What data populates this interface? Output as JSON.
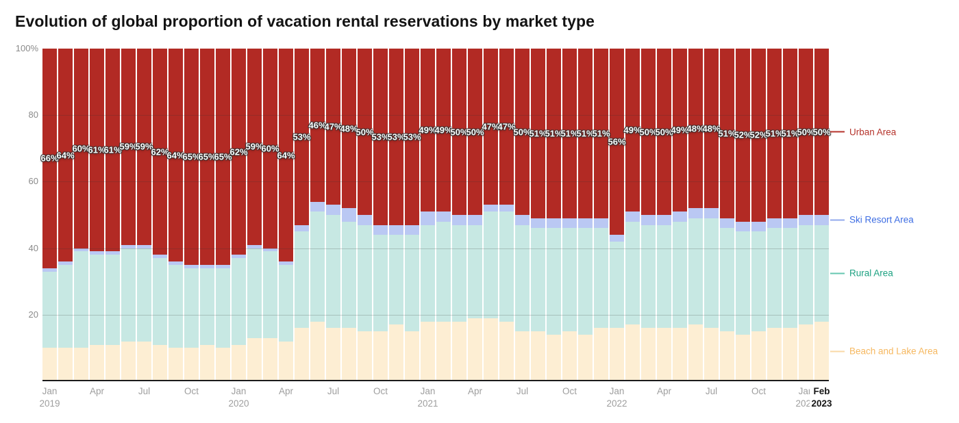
{
  "title": "Evolution of global proportion of vacation rental reservations by market type",
  "colors": {
    "urban_fill": "#b22a24",
    "ski_fill": "#bac8f3",
    "rural_fill": "#c7e8e3",
    "beach_fill": "#fdeed3",
    "urban_text": "#b5332b",
    "ski_text": "#3d6de3",
    "rural_text": "#1ca181",
    "beach_text": "#f6b860",
    "ski_dash": "#92a9ec",
    "rural_dash": "#66c7b0",
    "beach_dash": "#fad9a6",
    "axis_text": "#9e9e9e",
    "axis_text_bold": "#161616",
    "label_text": "#ffffff",
    "baseline": "#1b1b1b"
  },
  "y_axis": {
    "ticks": [
      {
        "label": "100%",
        "value": 100
      },
      {
        "label": "80",
        "value": 80
      },
      {
        "label": "60",
        "value": 60
      },
      {
        "label": "40",
        "value": 40
      },
      {
        "label": "20",
        "value": 20
      }
    ],
    "gridline_values": [
      80,
      60,
      40,
      20
    ]
  },
  "x_axis": {
    "ticks": [
      {
        "month": "Jan",
        "year": "2019",
        "index": 0
      },
      {
        "month": "Apr",
        "index": 3
      },
      {
        "month": "Jul",
        "index": 6
      },
      {
        "month": "Oct",
        "index": 9
      },
      {
        "month": "Jan",
        "year": "2020",
        "index": 12
      },
      {
        "month": "Apr",
        "index": 15
      },
      {
        "month": "Jul",
        "index": 18
      },
      {
        "month": "Oct",
        "index": 21
      },
      {
        "month": "Jan",
        "year": "2021",
        "index": 24
      },
      {
        "month": "Apr",
        "index": 27
      },
      {
        "month": "Jul",
        "index": 30
      },
      {
        "month": "Oct",
        "index": 33
      },
      {
        "month": "Jan",
        "year": "2022",
        "index": 36
      },
      {
        "month": "Apr",
        "index": 39
      },
      {
        "month": "Jul",
        "index": 42
      },
      {
        "month": "Oct",
        "index": 45
      },
      {
        "month": "Jan",
        "year": "2023",
        "index": 48
      },
      {
        "month": "Feb",
        "year": "2023",
        "index": 49,
        "bold": true
      }
    ]
  },
  "legend": [
    {
      "label": "Urban Area",
      "series": "Urban Area",
      "text_color": "#b5332b",
      "dash_color": "#b5332b"
    },
    {
      "label": "Ski Resort Area",
      "series": "Ski Resort Area",
      "text_color": "#3d6de3",
      "dash_color": "#92a9ec"
    },
    {
      "label": "Rural Area",
      "series": "Rural Area",
      "text_color": "#1ca181",
      "dash_color": "#66c7b0"
    },
    {
      "label": "Beach and Lake Area",
      "series": "Beach and Lake Area",
      "text_color": "#f6b860",
      "dash_color": "#fad9a6"
    }
  ],
  "chart_data": {
    "type": "bar",
    "stacked": true,
    "stacking_note": "series listed bottom-to-top; values are percent of total, each column sums to 100",
    "title": "Evolution of global proportion of vacation rental reservations by market type",
    "xlabel": "",
    "ylabel": "",
    "ylim": [
      0,
      100
    ],
    "grid": true,
    "legend_position": "right",
    "categories": [
      "Jan 2019",
      "Feb 2019",
      "Mar 2019",
      "Apr 2019",
      "May 2019",
      "Jun 2019",
      "Jul 2019",
      "Aug 2019",
      "Sep 2019",
      "Oct 2019",
      "Nov 2019",
      "Dec 2019",
      "Jan 2020",
      "Feb 2020",
      "Mar 2020",
      "Apr 2020",
      "May 2020",
      "Jun 2020",
      "Jul 2020",
      "Aug 2020",
      "Sep 2020",
      "Oct 2020",
      "Nov 2020",
      "Dec 2020",
      "Jan 2021",
      "Feb 2021",
      "Mar 2021",
      "Apr 2021",
      "May 2021",
      "Jun 2021",
      "Jul 2021",
      "Aug 2021",
      "Sep 2021",
      "Oct 2021",
      "Nov 2021",
      "Dec 2021",
      "Jan 2022",
      "Feb 2022",
      "Mar 2022",
      "Apr 2022",
      "May 2022",
      "Jun 2022",
      "Jul 2022",
      "Aug 2022",
      "Sep 2022",
      "Oct 2022",
      "Nov 2022",
      "Dec 2022",
      "Jan 2023",
      "Feb 2023"
    ],
    "series": [
      {
        "name": "Beach and Lake Area",
        "color": "#fdeed3",
        "data_labels": false,
        "values": [
          10,
          10,
          10,
          11,
          11,
          12,
          12,
          11,
          10,
          10,
          11,
          10,
          11,
          13,
          13,
          12,
          16,
          18,
          16,
          16,
          15,
          15,
          17,
          15,
          18,
          18,
          18,
          19,
          19,
          18,
          15,
          15,
          14,
          15,
          14,
          16,
          16,
          17,
          16,
          16,
          16,
          17,
          16,
          15,
          14,
          15,
          16,
          16,
          17,
          18
        ]
      },
      {
        "name": "Rural Area",
        "color": "#c7e8e3",
        "data_labels": false,
        "values": [
          23,
          25,
          29,
          27,
          27,
          28,
          28,
          26,
          25,
          24,
          23,
          24,
          26,
          27,
          26,
          23,
          29,
          33,
          34,
          32,
          32,
          29,
          27,
          29,
          29,
          30,
          29,
          28,
          32,
          33,
          32,
          31,
          32,
          31,
          32,
          30,
          26,
          31,
          31,
          31,
          32,
          32,
          33,
          31,
          31,
          30,
          30,
          30,
          30,
          29
        ]
      },
      {
        "name": "Ski Resort Area",
        "color": "#bac8f3",
        "data_labels": false,
        "values": [
          1,
          1,
          1,
          1,
          1,
          1,
          1,
          1,
          1,
          1,
          1,
          1,
          1,
          1,
          1,
          1,
          2,
          3,
          3,
          4,
          3,
          3,
          3,
          3,
          4,
          3,
          3,
          3,
          2,
          2,
          3,
          3,
          3,
          3,
          3,
          3,
          2,
          3,
          3,
          3,
          3,
          3,
          3,
          3,
          3,
          3,
          3,
          3,
          3,
          3
        ]
      },
      {
        "name": "Urban Area",
        "color": "#b22a24",
        "data_labels": true,
        "label_suffix": "%",
        "values": [
          66,
          64,
          60,
          61,
          61,
          59,
          59,
          62,
          64,
          65,
          65,
          65,
          62,
          59,
          60,
          64,
          53,
          46,
          47,
          48,
          50,
          53,
          53,
          53,
          49,
          49,
          50,
          50,
          47,
          47,
          50,
          51,
          51,
          51,
          51,
          51,
          56,
          49,
          50,
          50,
          49,
          48,
          48,
          51,
          52,
          52,
          51,
          51,
          50,
          50
        ]
      }
    ]
  }
}
